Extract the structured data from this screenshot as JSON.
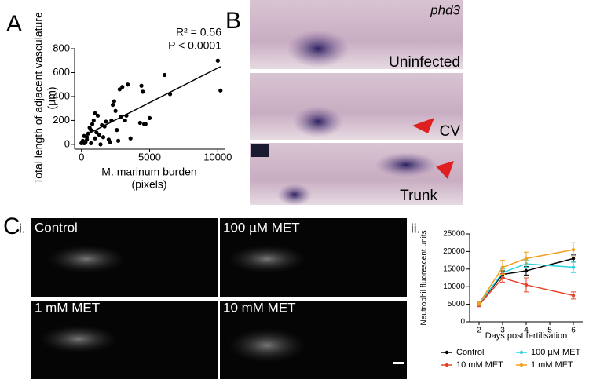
{
  "panels": {
    "a": "A",
    "b": "B",
    "c": "C",
    "ci": "i.",
    "cii": "ii."
  },
  "images": {
    "b_title": "phd3",
    "b_labels": [
      "Uninfected",
      "CV",
      "Trunk"
    ],
    "c_labels": [
      "Control",
      "100 µM MET",
      "1 mM MET",
      "10 mM MET"
    ]
  },
  "chart_data": [
    {
      "type": "scatter",
      "xlabel": [
        "M. marinum burden",
        "(pixels)"
      ],
      "ylabel": [
        "Total length of adjacent vasculature",
        "(µm)"
      ],
      "annotations": [
        "R² = 0.56",
        "P < 0.0001"
      ],
      "color": "#000000",
      "x": [
        10000,
        10200,
        6100,
        6500,
        4400,
        4500,
        4600,
        3400,
        3000,
        2800,
        2400,
        2300,
        2200,
        2500,
        2900,
        4300,
        4700,
        5000,
        1800,
        1700,
        1500,
        1200,
        1000,
        900,
        800,
        700,
        600,
        500,
        400,
        300,
        200,
        100,
        0,
        1000,
        1300,
        1600,
        2000,
        2600,
        3200,
        3300,
        1100,
        700,
        400,
        200,
        1400,
        2100,
        2700,
        3600
      ],
      "y": [
        700,
        450,
        580,
        420,
        490,
        440,
        170,
        500,
        480,
        460,
        360,
        330,
        200,
        280,
        230,
        180,
        170,
        220,
        190,
        150,
        160,
        240,
        260,
        200,
        170,
        120,
        140,
        90,
        40,
        20,
        10,
        30,
        10,
        50,
        80,
        60,
        40,
        120,
        200,
        240,
        100,
        10,
        60,
        70,
        0,
        20,
        30,
        50
      ],
      "fit": {
        "x": [
          0,
          10200
        ],
        "y": [
          60,
          650
        ]
      },
      "xlim": [
        -500,
        10500
      ],
      "ylim": [
        -40,
        800
      ],
      "xticks": [
        0,
        5000,
        10000
      ],
      "yticks": [
        0,
        200,
        400,
        600,
        800
      ]
    },
    {
      "type": "line",
      "xlabel": "Days post fertilisation",
      "ylabel": "Neutrophil fluorescent units",
      "x": [
        2,
        3,
        4,
        6
      ],
      "series": [
        {
          "name": "Control",
          "color": "#000000",
          "values": [
            5000,
            13500,
            14500,
            18000
          ],
          "errors": [
            500,
            1000,
            1200,
            1000
          ]
        },
        {
          "name": "100 µM MET",
          "color": "#2ad4e0",
          "values": [
            5000,
            14000,
            16500,
            15500
          ],
          "errors": [
            500,
            1000,
            1000,
            1500
          ]
        },
        {
          "name": "10 mM MET",
          "color": "#e8432a",
          "values": [
            4800,
            12500,
            10500,
            7500
          ],
          "errors": [
            500,
            1200,
            2000,
            1000
          ]
        },
        {
          "name": "1 mM MET",
          "color": "#f0a020",
          "values": [
            5200,
            15500,
            18000,
            20500
          ],
          "errors": [
            500,
            2000,
            1800,
            2000
          ]
        }
      ],
      "xlim": [
        1.6,
        6.4
      ],
      "ylim": [
        0,
        25000
      ],
      "xticks": [
        2,
        3,
        4,
        5,
        6
      ],
      "yticks": [
        0,
        5000,
        10000,
        15000,
        20000,
        25000
      ]
    }
  ]
}
